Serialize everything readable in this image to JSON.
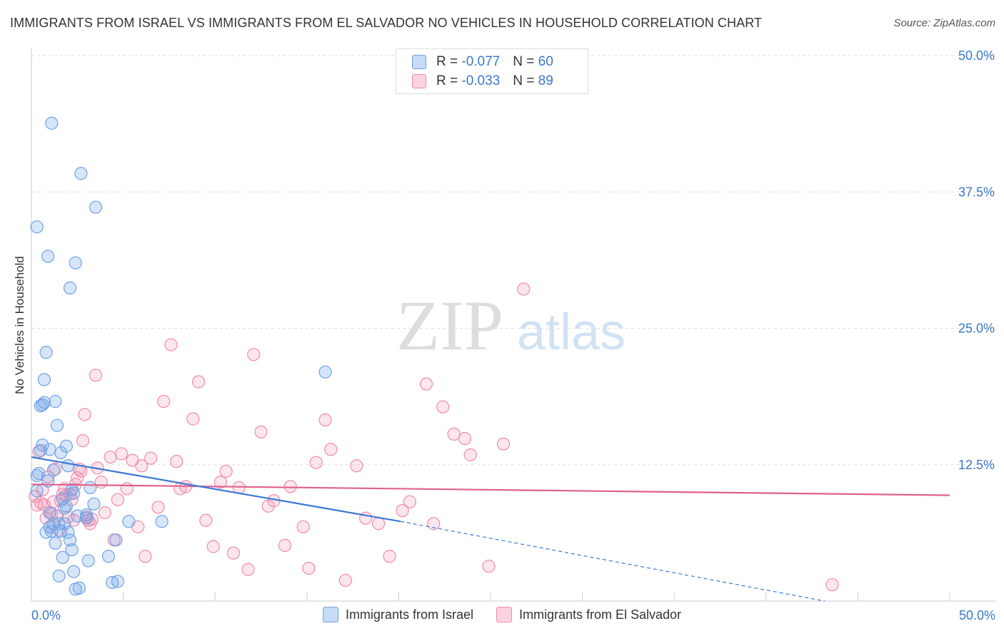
{
  "title": "IMMIGRANTS FROM ISRAEL VS IMMIGRANTS FROM EL SALVADOR NO VEHICLES IN HOUSEHOLD CORRELATION CHART",
  "source": "Source: ZipAtlas.com",
  "watermark": {
    "left": "ZIP",
    "right": "atlas"
  },
  "stats": [
    {
      "r_label": "R = ",
      "r_value": "-0.077",
      "n_label": "N = ",
      "n_value": "60"
    },
    {
      "r_label": "R = ",
      "r_value": "-0.033",
      "n_label": "N = ",
      "n_value": "89"
    }
  ],
  "legend": {
    "series1": "Immigrants from Israel",
    "series2": "Immigrants from El Salvador"
  },
  "x_tick_min": "0.0%",
  "x_tick_max": "50.0%",
  "chart_data": {
    "type": "scatter",
    "title": "IMMIGRANTS FROM ISRAEL VS IMMIGRANTS FROM EL SALVADOR NO VEHICLES IN HOUSEHOLD CORRELATION CHART",
    "xlabel": "",
    "ylabel": "No Vehicles in Household",
    "xlim": [
      0,
      50
    ],
    "ylim": [
      0,
      50
    ],
    "y_ticks": [
      12.5,
      25.0,
      37.5,
      50.0
    ],
    "y_tick_labels": [
      "12.5%",
      "25.0%",
      "37.5%",
      "50.0%"
    ],
    "grid": true,
    "colors": {
      "israel": "#6fa3e6",
      "el_salvador": "#f08bab",
      "israel_line": "#3a78d4",
      "el_salvador_line": "#e0608f",
      "axis_text": "#3a78c9"
    },
    "series": [
      {
        "name": "Immigrants from Israel",
        "x": [
          0.3,
          0.3,
          0.3,
          0.4,
          0.5,
          0.5,
          0.6,
          0.6,
          0.7,
          0.7,
          0.8,
          0.8,
          0.9,
          0.9,
          1.0,
          1.0,
          1.0,
          1.1,
          1.1,
          1.2,
          1.2,
          1.3,
          1.3,
          1.4,
          1.5,
          1.5,
          1.6,
          1.6,
          1.7,
          1.7,
          1.8,
          1.8,
          1.9,
          1.9,
          2.0,
          2.0,
          2.1,
          2.1,
          2.2,
          2.2,
          2.3,
          2.3,
          2.4,
          2.4,
          2.5,
          2.6,
          2.7,
          3.0,
          3.0,
          3.1,
          3.2,
          3.4,
          3.5,
          4.2,
          4.4,
          4.6,
          4.7,
          5.3,
          7.1,
          16.0
        ],
        "y": [
          11.5,
          10.1,
          34.3,
          11.7,
          13.8,
          17.9,
          18.0,
          14.3,
          20.3,
          18.2,
          22.8,
          6.3,
          31.6,
          11.0,
          8.1,
          6.8,
          13.9,
          43.8,
          6.4,
          7.1,
          12.0,
          18.3,
          5.3,
          16.1,
          7.1,
          2.3,
          13.6,
          6.4,
          9.4,
          4.0,
          7.1,
          8.5,
          8.7,
          14.2,
          12.4,
          6.3,
          28.7,
          5.6,
          4.7,
          10.2,
          9.9,
          2.7,
          31.0,
          1.1,
          7.8,
          1.2,
          39.2,
          7.6,
          7.9,
          3.7,
          10.4,
          8.9,
          36.1,
          4.1,
          1.7,
          5.6,
          1.8,
          7.3,
          7.3,
          21.0
        ]
      },
      {
        "name": "Immigrants from El Salvador",
        "x": [
          0.2,
          0.3,
          0.4,
          0.5,
          0.6,
          0.7,
          0.8,
          0.9,
          1.0,
          1.1,
          1.2,
          1.3,
          1.4,
          1.5,
          1.6,
          1.7,
          1.8,
          1.9,
          2.0,
          2.1,
          2.2,
          2.3,
          2.4,
          2.5,
          2.6,
          2.7,
          2.8,
          2.9,
          3.0,
          3.1,
          3.2,
          3.3,
          3.5,
          3.6,
          3.8,
          4.0,
          4.3,
          4.5,
          4.7,
          4.9,
          5.2,
          5.5,
          5.8,
          6.0,
          6.2,
          6.5,
          6.9,
          7.2,
          7.6,
          7.9,
          8.1,
          8.4,
          8.8,
          9.1,
          9.5,
          9.9,
          10.3,
          10.6,
          11.0,
          11.3,
          11.8,
          12.1,
          12.5,
          12.9,
          13.2,
          13.8,
          14.1,
          14.8,
          15.1,
          15.5,
          16.0,
          16.3,
          17.1,
          17.7,
          18.2,
          18.9,
          19.5,
          20.2,
          20.6,
          21.5,
          21.9,
          22.4,
          23.0,
          23.6,
          23.9,
          24.9,
          25.7,
          26.8,
          43.6
        ],
        "y": [
          9.6,
          8.8,
          13.7,
          9.0,
          10.2,
          8.8,
          7.6,
          11.4,
          8.1,
          8.0,
          9.1,
          12.1,
          7.8,
          6.5,
          9.2,
          9.8,
          10.3,
          9.7,
          7.7,
          9.8,
          9.3,
          7.4,
          10.7,
          11.3,
          12.1,
          11.9,
          14.7,
          17.1,
          7.7,
          7.4,
          7.1,
          7.5,
          20.7,
          12.2,
          10.9,
          8.1,
          13.2,
          5.6,
          9.3,
          13.5,
          10.3,
          12.9,
          6.8,
          12.4,
          4.1,
          13.1,
          8.6,
          18.3,
          23.5,
          12.8,
          10.3,
          10.5,
          16.7,
          20.1,
          7.4,
          5.0,
          10.9,
          11.9,
          4.4,
          10.4,
          2.9,
          22.6,
          15.5,
          8.7,
          9.2,
          5.1,
          10.5,
          6.8,
          3.0,
          12.7,
          16.6,
          13.9,
          1.9,
          12.4,
          7.6,
          7.1,
          4.1,
          8.3,
          9.1,
          19.9,
          7.1,
          17.8,
          15.3,
          14.9,
          13.4,
          3.2,
          14.4,
          28.6,
          1.5
        ]
      }
    ],
    "trendlines": [
      {
        "name": "Immigrants from Israel",
        "x0": 0,
        "y0": 13.2,
        "x1": 20.1,
        "y1": 7.3,
        "dashed_to_x": 43.2,
        "dashed_to_y": 0
      },
      {
        "name": "Immigrants from El Salvador",
        "x0": 0,
        "y0": 10.7,
        "x1": 50,
        "y1": 9.7
      }
    ]
  }
}
